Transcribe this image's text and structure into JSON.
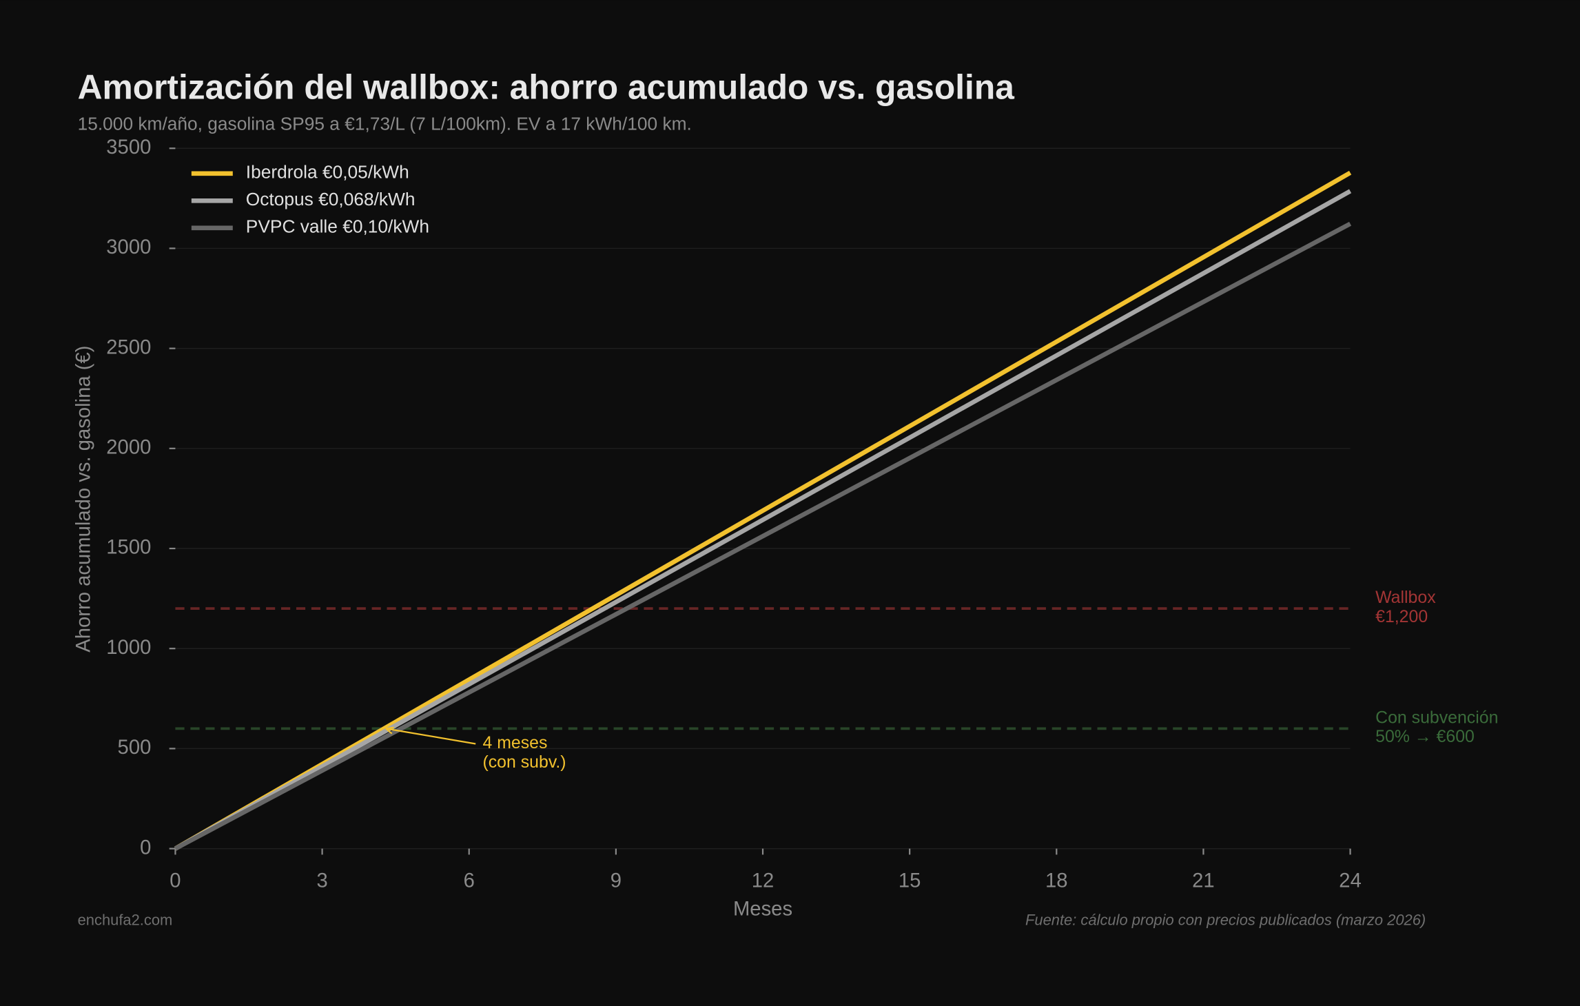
{
  "chart_data": {
    "type": "line",
    "title": "Amortización del wallbox: ahorro acumulado vs. gasolina",
    "subtitle": "15.000 km/año, gasolina SP95 a €1,73/L (7 L/100km). EV a 17 kWh/100 km.",
    "x_label": "Meses",
    "y_label": "Ahorro acumulado vs. gasolina (€)",
    "x": [
      0,
      24
    ],
    "series": [
      {
        "name": "Iberdrola €0,05/kWh",
        "color": "#f2c12e",
        "values": [
          0,
          3378
        ]
      },
      {
        "name": "Octopus €0,068/kWh",
        "color": "#a6a6a6",
        "values": [
          0,
          3286
        ]
      },
      {
        "name": "PVPC valle €0,10/kWh",
        "color": "#666666",
        "values": [
          0,
          3123
        ]
      }
    ],
    "xlim": [
      0,
      24
    ],
    "xticks": [
      0,
      3,
      6,
      9,
      12,
      15,
      18,
      21,
      24
    ],
    "ylim": [
      0,
      3500
    ],
    "yticks": [
      0,
      500,
      1000,
      1500,
      2000,
      2500,
      3000,
      3500
    ],
    "grid": true,
    "legend": "upper left",
    "hlines": [
      {
        "value": 1200,
        "label": [
          "Wallbox",
          "€1,200"
        ],
        "color": "#a33535"
      },
      {
        "value": 600,
        "label": [
          "Con subvención",
          "50% → €600"
        ],
        "color": "#3a6b3a"
      }
    ],
    "annotations": [
      {
        "text": [
          "4 meses",
          "(con subv.)"
        ],
        "x": 4.3,
        "y": 600,
        "color": "#f2c12e"
      }
    ],
    "footer_left": "enchufa2.com",
    "footer_right": "Fuente: cálculo propio con precios publicados (marzo 2026)"
  }
}
